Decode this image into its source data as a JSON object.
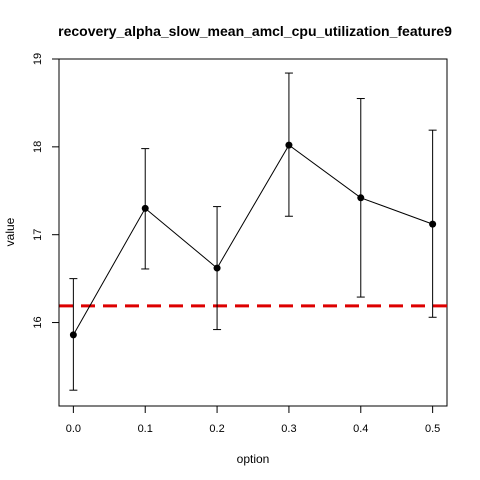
{
  "chart_data": {
    "type": "line",
    "title": "recovery_alpha_slow_mean_amcl_cpu_utilization_feature9",
    "xlabel": "option",
    "ylabel": "value",
    "x": [
      0.0,
      0.1,
      0.2,
      0.3,
      0.4,
      0.5
    ],
    "x_tick_labels": [
      "0.0",
      "0.1",
      "0.2",
      "0.3",
      "0.4",
      "0.5"
    ],
    "y_ticks": [
      16,
      17,
      18,
      19
    ],
    "y_tick_labels": [
      "16",
      "17",
      "18",
      "19"
    ],
    "xlim": [
      -0.02,
      0.52
    ],
    "ylim": [
      15.05,
      19.0
    ],
    "series": [
      {
        "values": [
          15.86,
          17.3,
          16.62,
          18.02,
          17.42,
          17.12
        ],
        "error_low": [
          15.23,
          16.61,
          15.92,
          17.21,
          16.29,
          16.06
        ],
        "error_high": [
          16.5,
          17.98,
          17.32,
          18.84,
          18.55,
          18.19
        ],
        "color": "#000000"
      }
    ],
    "reference_line": {
      "y": 16.19,
      "color": "#dd0000",
      "style": "dashed"
    },
    "grid": false,
    "legend": "none"
  }
}
